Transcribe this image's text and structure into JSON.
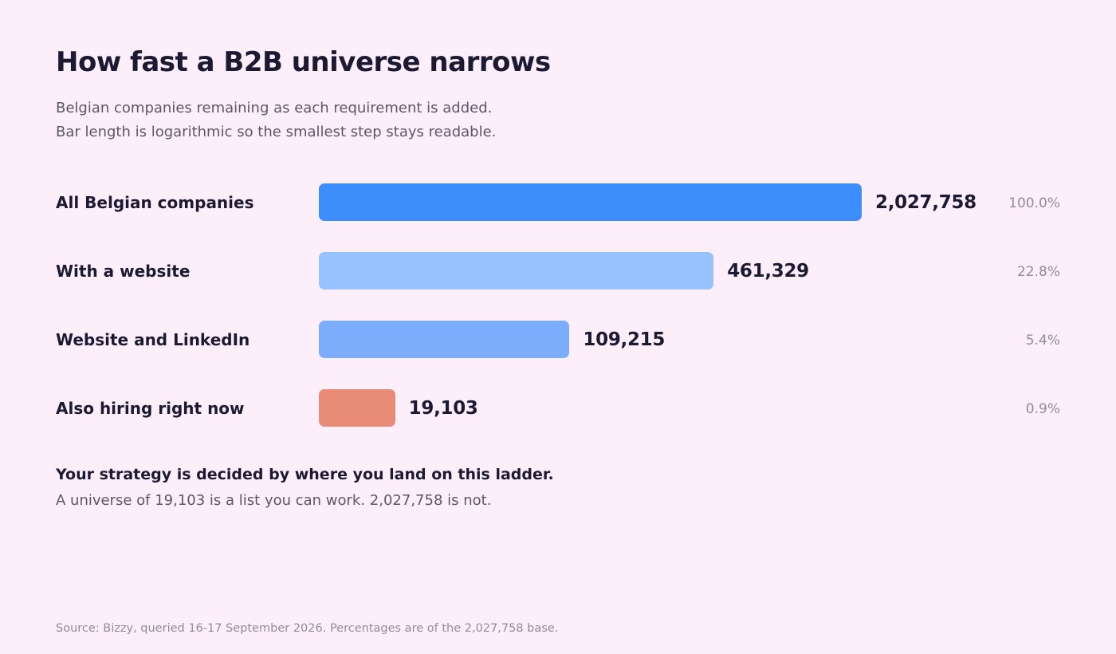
{
  "chart_data": {
    "type": "bar",
    "orientation": "horizontal",
    "scale": "log",
    "title": "How fast a B2B universe narrows",
    "subtitle_lines": [
      "Belgian companies remaining as each requirement is added.",
      "Bar length is logarithmic so the smallest step stays readable."
    ],
    "categories": [
      "All Belgian companies",
      "With a website",
      "Website and LinkedIn",
      "Also hiring right now"
    ],
    "values": [
      2027758,
      461329,
      109215,
      19103
    ],
    "value_labels": [
      "2,027,758",
      "461,329",
      "109,215",
      "19,103"
    ],
    "percent_labels": [
      "100.0%",
      "22.8%",
      "5.4%",
      "0.9%"
    ],
    "colors": [
      "#3d8dfd",
      "#98c2fd",
      "#7badfc",
      "#e88c78"
    ],
    "grid": false,
    "legend": "none"
  },
  "takeaway": {
    "headline": "Your strategy is decided by where you land on this ladder.",
    "detail": "A universe of 19,103 is a list you can work. 2,027,758 is not."
  },
  "footer": {
    "source": "Source: Bizzy, queried 16-17 September 2026. Percentages are of the 2,027,758 base."
  }
}
